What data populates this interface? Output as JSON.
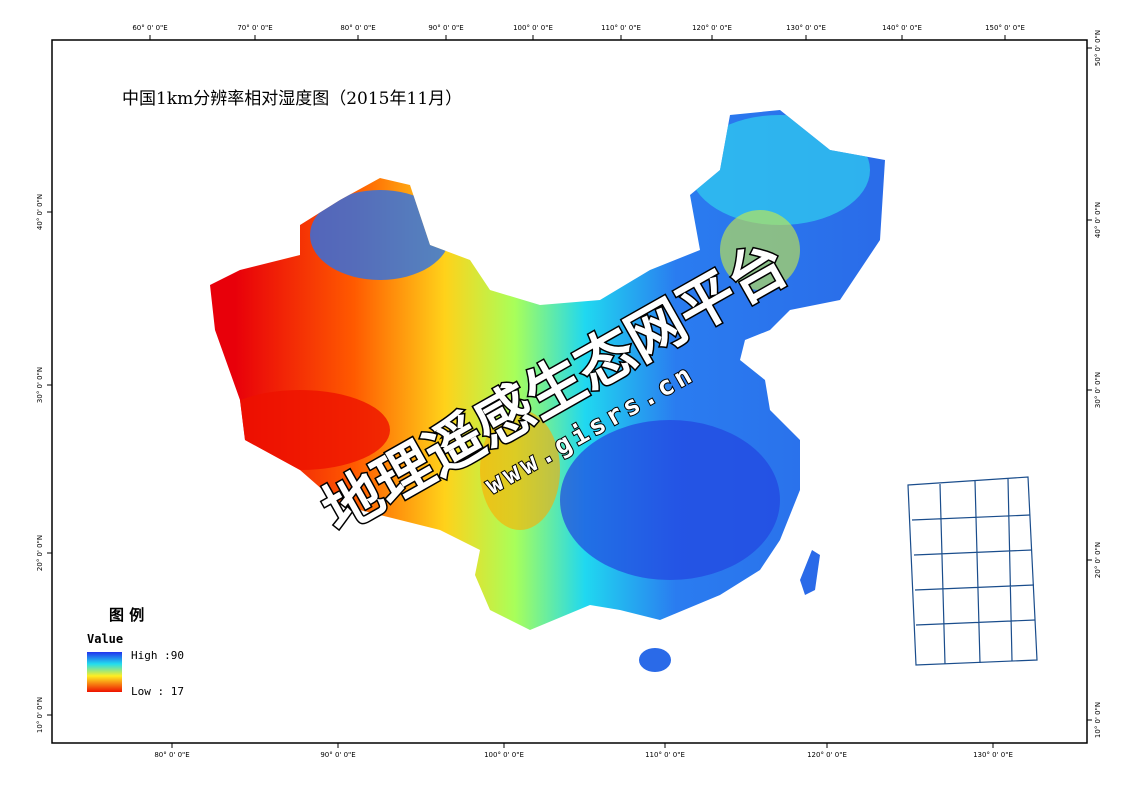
{
  "title": "中国1km分辨率相对湿度图（2015年11月）",
  "graticule": {
    "top": [
      "60° 0' 0\"E",
      "70° 0' 0\"E",
      "80° 0' 0\"E",
      "90° 0' 0\"E",
      "100° 0' 0\"E",
      "110° 0' 0\"E",
      "120° 0' 0\"E",
      "130° 0' 0\"E",
      "140° 0' 0\"E",
      "150° 0' 0\"E"
    ],
    "bottom": [
      "80° 0' 0\"E",
      "90° 0' 0\"E",
      "100° 0' 0\"E",
      "110° 0' 0\"E",
      "120° 0' 0\"E",
      "130° 0' 0\"E"
    ],
    "left": [
      "40° 0' 0\"N",
      "30° 0' 0\"N",
      "20° 0' 0\"N",
      "10° 0' 0\"N"
    ],
    "right": [
      "50° 0' 0\"N",
      "40° 0' 0\"N",
      "30° 0' 0\"N",
      "20° 0' 0\"N",
      "10° 0' 0\"N"
    ]
  },
  "legend": {
    "title": "图 例",
    "field": "Value",
    "high_label": "High :90",
    "low_label": "Low : 17"
  },
  "watermark": {
    "name": "地理遥感生态网平台",
    "url": "www.gisrs.cn"
  }
}
